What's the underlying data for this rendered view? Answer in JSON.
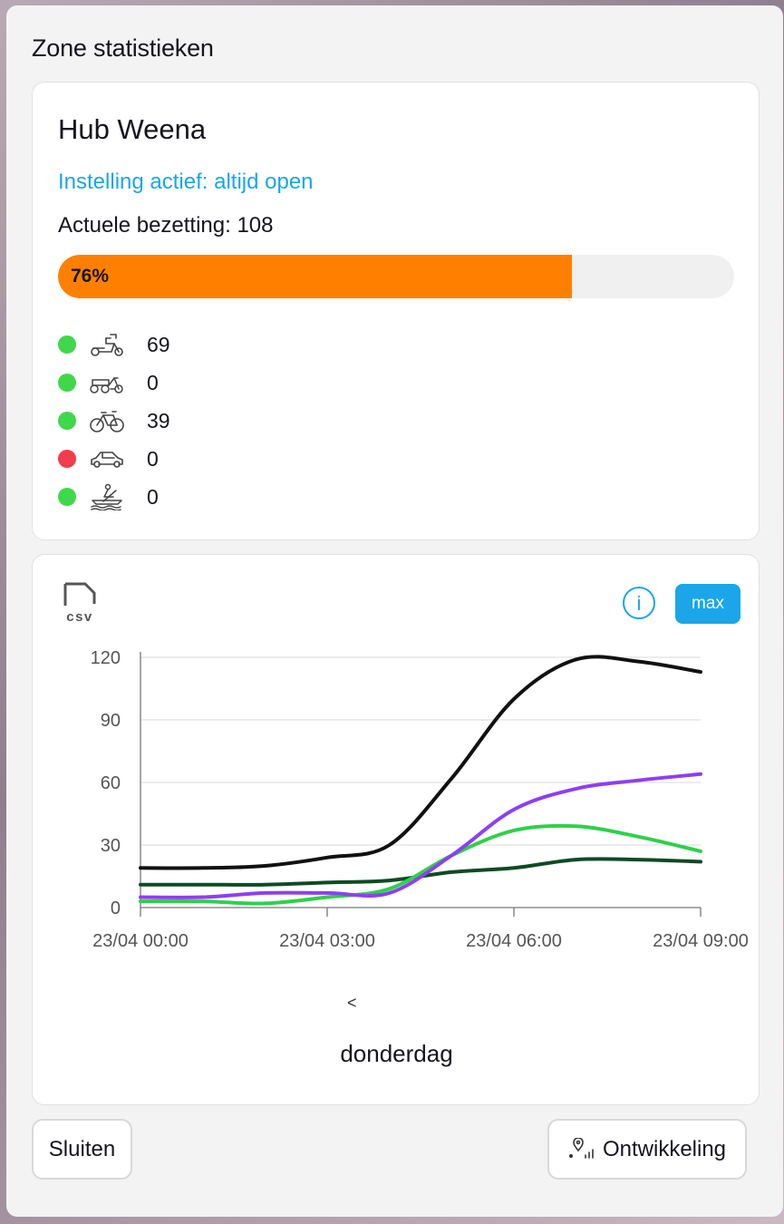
{
  "panel": {
    "title": "Zone statistieken"
  },
  "zone": {
    "name": "Hub Weena",
    "setting": "Instelling actief: altijd open",
    "occupancy": "Actuele bezetting: 108",
    "progress_label": "76%",
    "progress_percent": 76,
    "bar_color": "#ff8000",
    "modes": [
      {
        "icon": "scooter-icon",
        "status_color": "#3fd84a",
        "count": "69"
      },
      {
        "icon": "cargo-bike-icon",
        "status_color": "#3fd84a",
        "count": "0"
      },
      {
        "icon": "bicycle-icon",
        "status_color": "#3fd84a",
        "count": "39"
      },
      {
        "icon": "car-icon",
        "status_color": "#f23d4c",
        "count": "0"
      },
      {
        "icon": "boat-icon",
        "status_color": "#3fd84a",
        "count": "0"
      }
    ]
  },
  "chart": {
    "csv_label": "csv",
    "info_label": "i",
    "max_label": "max",
    "prev_label": "<",
    "day_label": "donderdag"
  },
  "chart_data": {
    "type": "line",
    "x": [
      0,
      1,
      2,
      3,
      4,
      5,
      6,
      7,
      8,
      9
    ],
    "xticks": [
      "23/04 00:00",
      "23/04 03:00",
      "23/04 06:00",
      "23/04 09:00"
    ],
    "xtick_positions": [
      0,
      3,
      6,
      9
    ],
    "ylim": [
      0,
      120
    ],
    "yticks": [
      0,
      30,
      60,
      90,
      120
    ],
    "grid": true,
    "series": [
      {
        "color": "#111111",
        "values": [
          19,
          19,
          20,
          24,
          30,
          62,
          100,
          119,
          118,
          113
        ]
      },
      {
        "color": "#8e3ff0",
        "values": [
          5,
          5,
          7,
          7,
          7,
          25,
          47,
          57,
          61,
          64
        ]
      },
      {
        "color": "#2fd04a",
        "values": [
          3,
          3,
          2,
          5,
          9,
          25,
          37,
          39,
          34,
          27
        ]
      },
      {
        "color": "#0f4a25",
        "values": [
          11,
          11,
          11,
          12,
          13,
          17,
          19,
          23,
          23,
          22
        ]
      }
    ]
  },
  "footer": {
    "close_label": "Sluiten",
    "dev_label": "Ontwikkeling"
  }
}
